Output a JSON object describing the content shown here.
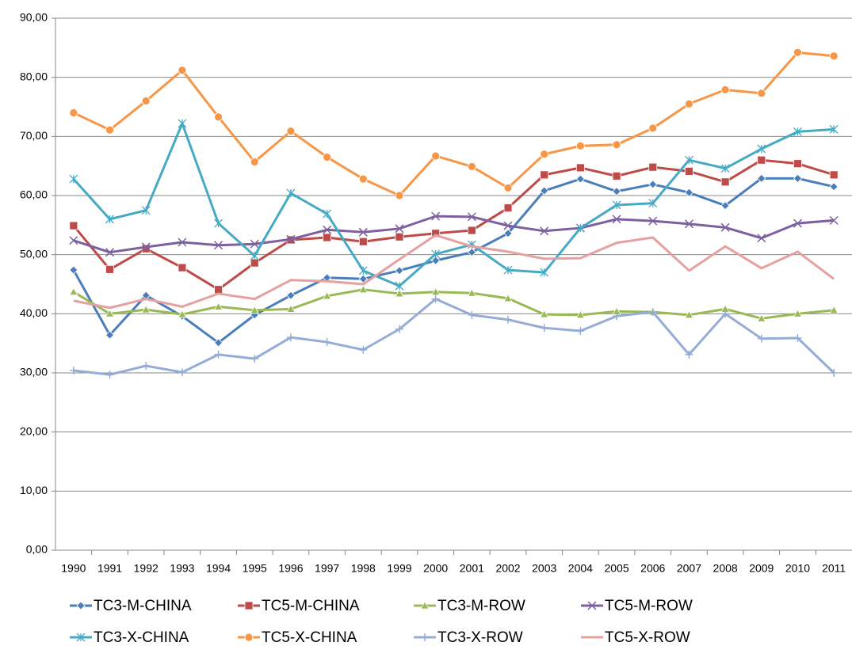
{
  "chart_data": {
    "type": "line",
    "categories": [
      "1990",
      "1991",
      "1992",
      "1993",
      "1994",
      "1995",
      "1996",
      "1997",
      "1998",
      "1999",
      "2000",
      "2001",
      "2002",
      "2003",
      "2004",
      "2005",
      "2006",
      "2007",
      "2008",
      "2009",
      "2010",
      "2011"
    ],
    "ylim": [
      0,
      90
    ],
    "yticks": [
      {
        "value": 0,
        "label": "0,00"
      },
      {
        "value": 10,
        "label": "10,00"
      },
      {
        "value": 20,
        "label": "20,00"
      },
      {
        "value": 30,
        "label": "30,00"
      },
      {
        "value": 40,
        "label": "40,00"
      },
      {
        "value": 50,
        "label": "50,00"
      },
      {
        "value": 60,
        "label": "60,00"
      },
      {
        "value": 70,
        "label": "70,00"
      },
      {
        "value": 80,
        "label": "80,00"
      },
      {
        "value": 90,
        "label": "90,00"
      }
    ],
    "grid": true,
    "legend": "bottom",
    "series": [
      {
        "name": "TC3-M-CHINA",
        "color": "#4a7ebb",
        "marker": "diamond",
        "values": [
          47.4,
          36.4,
          43.1,
          39.6,
          35.1,
          39.8,
          43.1,
          46.1,
          45.9,
          47.3,
          49.0,
          50.4,
          53.6,
          60.8,
          62.8,
          60.7,
          61.9,
          60.5,
          58.3,
          62.9,
          62.9,
          61.5
        ]
      },
      {
        "name": "TC5-M-CHINA",
        "color": "#be4b48",
        "marker": "square",
        "values": [
          54.9,
          47.5,
          51.0,
          47.8,
          44.1,
          48.6,
          52.5,
          52.9,
          52.2,
          53.0,
          53.6,
          54.1,
          57.9,
          63.5,
          64.7,
          63.3,
          64.8,
          64.1,
          62.3,
          66.0,
          65.4,
          63.5
        ]
      },
      {
        "name": "TC3-M-ROW",
        "color": "#98b954",
        "marker": "triangle",
        "values": [
          43.7,
          40.0,
          40.7,
          39.9,
          41.2,
          40.6,
          40.8,
          43.0,
          44.1,
          43.4,
          43.7,
          43.5,
          42.6,
          39.9,
          39.8,
          40.4,
          40.3,
          39.8,
          40.8,
          39.2,
          40.0,
          40.6
        ]
      },
      {
        "name": "TC5-M-ROW",
        "color": "#7d60a0",
        "marker": "x",
        "values": [
          52.4,
          50.4,
          51.3,
          52.1,
          51.6,
          51.8,
          52.6,
          54.2,
          53.8,
          54.4,
          56.5,
          56.4,
          54.9,
          54.0,
          54.5,
          56.0,
          55.7,
          55.2,
          54.6,
          52.8,
          55.3,
          55.8
        ]
      },
      {
        "name": "TC3-X-CHINA",
        "color": "#46aac5",
        "marker": "star",
        "values": [
          62.8,
          56.0,
          57.5,
          72.2,
          55.3,
          49.8,
          60.4,
          56.9,
          47.3,
          44.7,
          50.1,
          51.7,
          47.4,
          47.0,
          54.5,
          58.4,
          58.7,
          66.0,
          64.6,
          67.9,
          70.8,
          71.2
        ]
      },
      {
        "name": "TC5-X-CHINA",
        "color": "#f79646",
        "marker": "circle",
        "values": [
          74.0,
          71.1,
          76.0,
          81.2,
          73.3,
          65.7,
          70.9,
          66.5,
          62.8,
          60.0,
          66.7,
          64.9,
          61.3,
          67.0,
          68.4,
          68.6,
          71.4,
          75.5,
          77.9,
          77.3,
          84.2,
          83.6
        ]
      },
      {
        "name": "TC3-X-ROW",
        "color": "#95acd6",
        "marker": "plus",
        "values": [
          30.4,
          29.7,
          31.2,
          30.1,
          33.1,
          32.4,
          36.0,
          35.2,
          33.9,
          37.4,
          42.5,
          39.8,
          39.0,
          37.6,
          37.1,
          39.6,
          40.3,
          33.1,
          40.0,
          35.8,
          35.9,
          30.0
        ]
      },
      {
        "name": "TC5-X-ROW",
        "color": "#e6a0a0",
        "marker": "none",
        "values": [
          42.2,
          41.0,
          42.5,
          41.2,
          43.4,
          42.5,
          45.7,
          45.5,
          45.0,
          49.2,
          53.3,
          51.4,
          50.5,
          49.3,
          49.4,
          52.0,
          52.9,
          47.3,
          51.4,
          47.7,
          50.5,
          45.9
        ]
      }
    ]
  }
}
